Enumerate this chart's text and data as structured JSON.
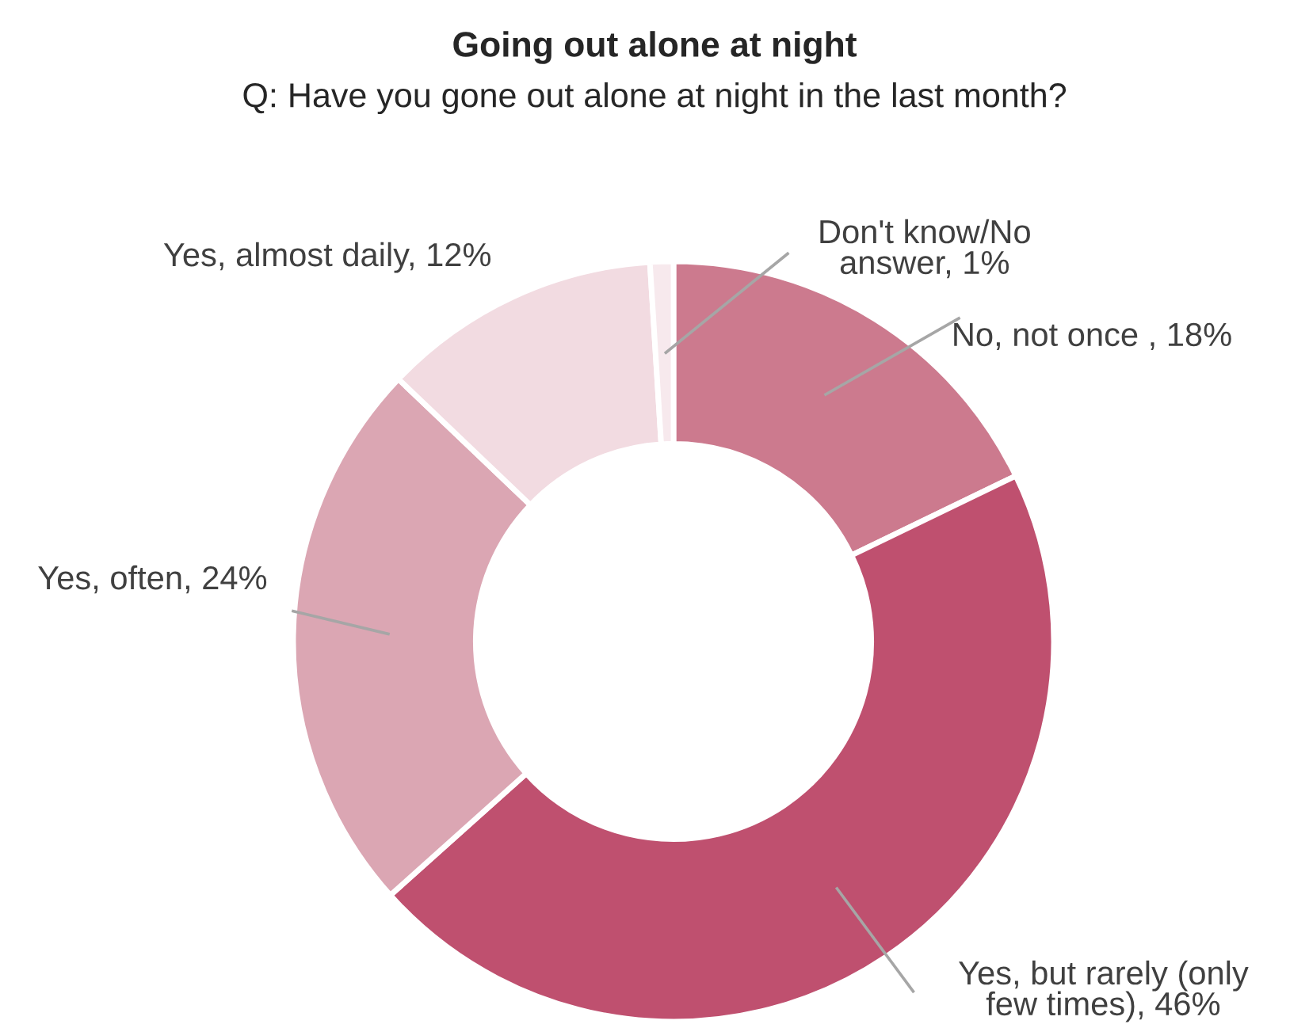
{
  "chart_data": {
    "type": "donut",
    "title": "Going out alone at night",
    "subtitle": "Q: Have you gone out alone at night in the last month?",
    "categories": [
      "No, not once ",
      "Yes, but rarely (only\nfew times)",
      "Yes, often",
      "Yes, almost daily",
      "Don't know/No\nanswer"
    ],
    "values": [
      18,
      46,
      24,
      12,
      1
    ],
    "value_labels": [
      "18%",
      "46%",
      "24%",
      "12%",
      "1%"
    ],
    "colors": [
      "#cc7a8e",
      "#bf506f",
      "#dba6b3",
      "#f2dbe1",
      "#f7e9ed"
    ]
  }
}
